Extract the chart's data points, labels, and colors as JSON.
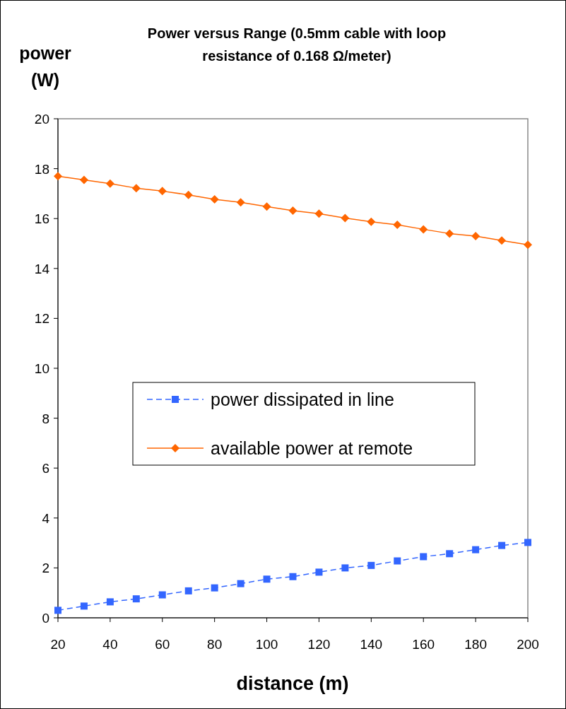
{
  "chart_data": {
    "type": "line",
    "title": "Power versus Range (0.5mm cable with loop resistance of 0.168 Ω/meter)",
    "xlabel": "distance (m)",
    "ylabel": "power (W)",
    "x": [
      20,
      30,
      40,
      50,
      60,
      70,
      80,
      90,
      100,
      110,
      120,
      130,
      140,
      150,
      160,
      170,
      180,
      190,
      200
    ],
    "xlim": [
      20,
      200
    ],
    "xticks": [
      20,
      40,
      60,
      80,
      100,
      120,
      140,
      160,
      180,
      200
    ],
    "ylim": [
      0,
      20
    ],
    "yticks": [
      0,
      2,
      4,
      6,
      8,
      10,
      12,
      14,
      16,
      18,
      20
    ],
    "grid": false,
    "legend": "center",
    "series": [
      {
        "name": "power dissipated in line",
        "color": "#3366ff",
        "marker": "square",
        "line_style": "dashed",
        "values": [
          0.3,
          0.47,
          0.64,
          0.76,
          0.92,
          1.08,
          1.2,
          1.37,
          1.55,
          1.65,
          1.83,
          2.0,
          2.1,
          2.28,
          2.45,
          2.57,
          2.73,
          2.9,
          3.02
        ]
      },
      {
        "name": "available power at remote",
        "color": "#ff6600",
        "marker": "diamond",
        "line_style": "solid",
        "values": [
          17.7,
          17.55,
          17.4,
          17.22,
          17.1,
          16.95,
          16.77,
          16.65,
          16.48,
          16.32,
          16.2,
          16.02,
          15.87,
          15.75,
          15.57,
          15.4,
          15.3,
          15.12,
          14.95
        ]
      }
    ]
  }
}
